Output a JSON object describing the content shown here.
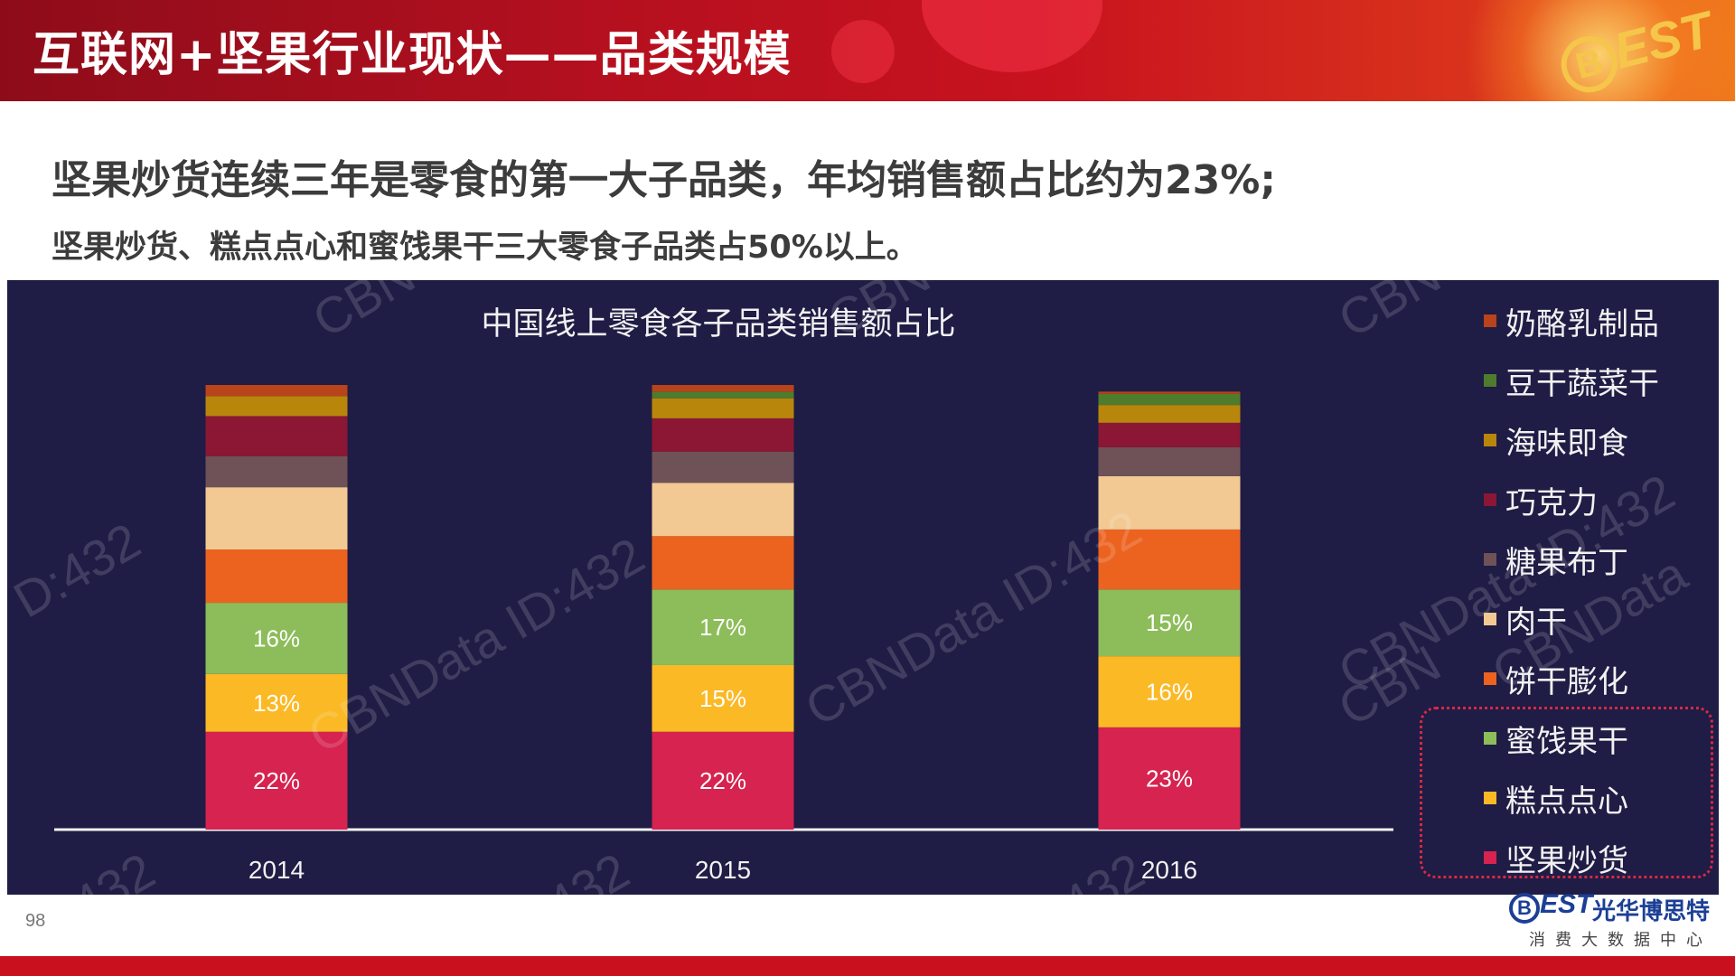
{
  "header": {
    "title": "互联网+坚果行业现状——品类规模",
    "logo_text": "BEST"
  },
  "summary": {
    "line1": "坚果炒货连续三年是零食的第一大子品类，年均销售额占比约为23%;",
    "line2": "坚果炒货、糕点点心和蜜饯果干三大零食子品类占50%以上。"
  },
  "watermarks": [
    "CBNData ID:432",
    "CBNData ID:432",
    "CBNData ID:432",
    "CBNData",
    "D:432",
    "CBN",
    "CBN",
    "CBN",
    ":432",
    ":432",
    ":432",
    "CBN"
  ],
  "chart_data": {
    "type": "bar",
    "stacked": true,
    "title": "中国线上零食各子品类销售额占比",
    "categories": [
      "2014",
      "2015",
      "2016"
    ],
    "ylim": [
      0,
      100
    ],
    "series": [
      {
        "name": "坚果炒货",
        "color": "#d6234f",
        "values": [
          22,
          22,
          23
        ],
        "labels": [
          "22%",
          "22%",
          "23%"
        ]
      },
      {
        "name": "糕点点心",
        "color": "#fbb926",
        "values": [
          13,
          15,
          16
        ],
        "labels": [
          "13%",
          "15%",
          "16%"
        ]
      },
      {
        "name": "蜜饯果干",
        "color": "#8dbd5a",
        "values": [
          16,
          17,
          15
        ],
        "labels": [
          "16%",
          "17%",
          "15%"
        ]
      },
      {
        "name": "饼干膨化",
        "color": "#ec6320",
        "values": [
          12,
          12,
          13.5
        ],
        "labels": [
          "",
          "",
          ""
        ]
      },
      {
        "name": "肉干",
        "color": "#f2c993",
        "values": [
          14,
          12,
          12
        ],
        "labels": [
          "",
          "",
          ""
        ]
      },
      {
        "name": "糖果布丁",
        "color": "#6f5257",
        "values": [
          7,
          7,
          6.5
        ],
        "labels": [
          "",
          "",
          ""
        ]
      },
      {
        "name": "巧克力",
        "color": "#8b1734",
        "values": [
          9,
          7.5,
          5.5
        ],
        "labels": [
          "",
          "",
          ""
        ]
      },
      {
        "name": "海味即食",
        "color": "#b8860b",
        "values": [
          4.5,
          4.5,
          4
        ],
        "labels": [
          "",
          "",
          ""
        ]
      },
      {
        "name": "豆干蔬菜干",
        "color": "#4f7b2c",
        "values": [
          0,
          1.5,
          2.5
        ],
        "labels": [
          "",
          "",
          ""
        ]
      },
      {
        "name": "奶酪乳制品",
        "color": "#b9431b",
        "values": [
          2.5,
          1.5,
          0.5
        ],
        "labels": [
          "",
          "",
          ""
        ]
      }
    ],
    "legend_order": [
      "奶酪乳制品",
      "豆干蔬菜干",
      "海味即食",
      "巧克力",
      "糖果布丁",
      "肉干",
      "饼干膨化",
      "蜜饯果干",
      "糕点点心",
      "坚果炒货"
    ],
    "legend_position": "right",
    "grid": false
  },
  "footer": {
    "page_number": "98",
    "brand_logo": "BEST",
    "brand_cn": "光华博思特",
    "brand_sub": "消费大数据中心"
  },
  "colors": {
    "header_red": "#b5101f",
    "panel_bg": "#1f1c45",
    "highlight_border": "#d62845",
    "brand_blue": "#1c3f95"
  }
}
